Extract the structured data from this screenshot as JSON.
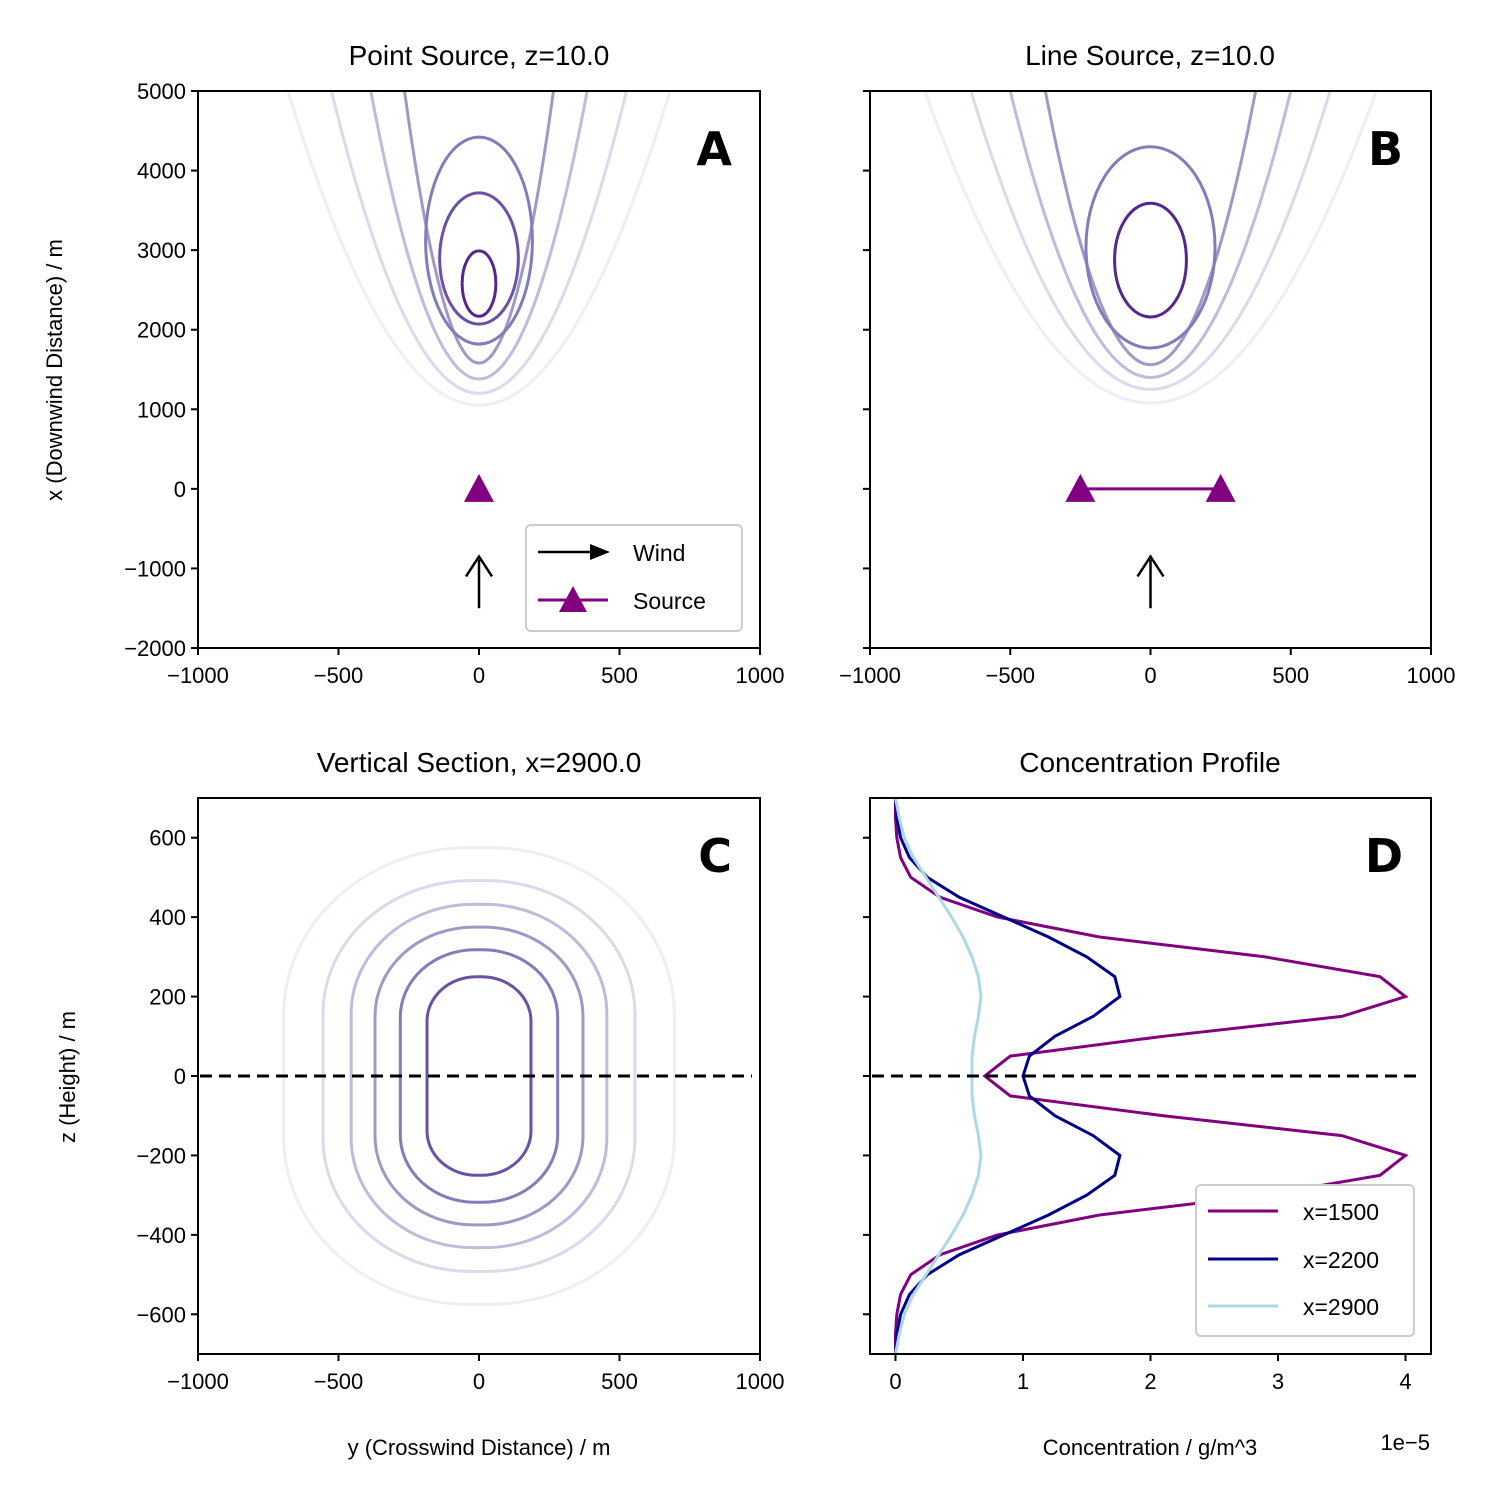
{
  "chart_data": [
    {
      "id": "A",
      "type": "contour",
      "badge": "A",
      "title": "Point Source, z=10.0",
      "xlabel": "",
      "ylabel": "x (Downwind Distance) / m",
      "xlim": [
        -1000,
        1000
      ],
      "ylim": [
        -2000,
        5000
      ],
      "xticks": [
        -1000,
        -500,
        0,
        500,
        1000
      ],
      "yticks": [
        -2000,
        -1000,
        0,
        1000,
        2000,
        3000,
        4000,
        5000
      ],
      "show_ytick_labels": true,
      "contours": [
        {
          "xmin": 1050,
          "x_top": 5000,
          "y_top_halfwidth": 680,
          "color": "#efedf5"
        },
        {
          "xmin": 1200,
          "x_top": 5000,
          "y_top_halfwidth": 525,
          "color": "#dadaeb"
        },
        {
          "xmin": 1380,
          "x_top": 5000,
          "y_top_halfwidth": 385,
          "color": "#bcbddc"
        },
        {
          "xmin": 1580,
          "x_top": 5000,
          "y_top_halfwidth": 265,
          "color": "#9e9ac8"
        },
        {
          "xmin": 1820,
          "x_top": 4420,
          "y_halfwidth": 190,
          "color": "#807dba"
        },
        {
          "xmin": 2070,
          "x_top": 3720,
          "y_halfwidth": 140,
          "color": "#6a51a3"
        },
        {
          "xmin": 2170,
          "x_top": 2990,
          "y_halfwidth": 60,
          "color": "#54278f"
        }
      ],
      "source_points": [
        [
          0,
          0
        ]
      ],
      "source_color": "#800080",
      "wind_arrow": {
        "x": 0,
        "from": -1500,
        "to": -850
      },
      "legend": [
        {
          "label": "Wind",
          "kind": "arrow",
          "color": "#000000"
        },
        {
          "label": "Source",
          "kind": "triangle-line",
          "color": "#800080"
        }
      ]
    },
    {
      "id": "B",
      "type": "contour",
      "badge": "B",
      "title": "Line Source, z=10.0",
      "xlabel": "",
      "ylabel": "",
      "xlim": [
        -1000,
        1000
      ],
      "ylim": [
        -2000,
        5000
      ],
      "xticks": [
        -1000,
        -500,
        0,
        500,
        1000
      ],
      "yticks": [
        -2000,
        -1000,
        0,
        1000,
        2000,
        3000,
        4000,
        5000
      ],
      "show_ytick_labels": false,
      "contours": [
        {
          "xmin": 1080,
          "x_top": 5000,
          "y_top_halfwidth": 805,
          "color": "#efedf5"
        },
        {
          "xmin": 1250,
          "x_top": 5000,
          "y_top_halfwidth": 640,
          "color": "#dadaeb"
        },
        {
          "xmin": 1400,
          "x_top": 5000,
          "y_top_halfwidth": 500,
          "color": "#bcbddc"
        },
        {
          "xmin": 1560,
          "x_top": 5000,
          "y_top_halfwidth": 375,
          "color": "#9e9ac8"
        },
        {
          "xmin": 1770,
          "x_top": 4300,
          "y_halfwidth": 230,
          "color": "#807dba"
        },
        {
          "xmin": 2160,
          "x_top": 3590,
          "y_halfwidth": 128,
          "color": "#54278f"
        }
      ],
      "source_points": [
        [
          -250,
          0
        ],
        [
          250,
          0
        ]
      ],
      "source_color": "#800080",
      "wind_arrow": {
        "x": 0,
        "from": -1500,
        "to": -850
      }
    },
    {
      "id": "C",
      "type": "contour",
      "badge": "C",
      "title": "Vertical Section, x=2900.0",
      "xlabel": "y (Crosswind Distance) / m",
      "ylabel": "z (Height) / m",
      "xlim": [
        -1000,
        1000
      ],
      "ylim": [
        -700,
        700
      ],
      "xticks": [
        -1000,
        -500,
        0,
        500,
        1000
      ],
      "yticks": [
        -600,
        -400,
        -200,
        0,
        200,
        400,
        600
      ],
      "show_ytick_labels": true,
      "contours": [
        {
          "y_halfwidth": 695,
          "z_halfheight": 575,
          "color": "#efedf5"
        },
        {
          "y_halfwidth": 555,
          "z_halfheight": 492,
          "color": "#dadaeb"
        },
        {
          "y_halfwidth": 455,
          "z_halfheight": 432,
          "color": "#bcbddc"
        },
        {
          "y_halfwidth": 370,
          "z_halfheight": 375,
          "color": "#9e9ac8"
        },
        {
          "y_halfwidth": 280,
          "z_halfheight": 318,
          "color": "#807dba"
        },
        {
          "y_halfwidth": 185,
          "z_halfheight": 250,
          "color": "#6a51a3"
        }
      ],
      "ground_line": 0
    },
    {
      "id": "D",
      "type": "line",
      "badge": "D",
      "title": "Concentration Profile",
      "xlabel": "Concentration / g/m^3",
      "ylabel": "",
      "offset_label": "1e−5",
      "xlim": [
        -0.2,
        4.2
      ],
      "ylim": [
        -700,
        700
      ],
      "xticks": [
        0,
        1,
        2,
        3,
        4
      ],
      "yticks": [
        -600,
        -400,
        -200,
        0,
        200,
        400,
        600
      ],
      "show_ytick_labels": false,
      "ground_line": 0,
      "z": [
        -700,
        -650,
        -600,
        -550,
        -500,
        -450,
        -400,
        -350,
        -300,
        -250,
        -200,
        -150,
        -100,
        -50,
        0,
        50,
        100,
        150,
        200,
        250,
        300,
        350,
        400,
        450,
        500,
        550,
        600,
        650,
        700
      ],
      "series": [
        {
          "name": "x=1500",
          "color": "#800080",
          "values": [
            0.0,
            0.0,
            0.01,
            0.04,
            0.12,
            0.35,
            0.8,
            1.6,
            2.9,
            3.8,
            4.0,
            3.5,
            2.1,
            0.9,
            0.7,
            0.9,
            2.1,
            3.5,
            4.0,
            3.8,
            2.9,
            1.6,
            0.8,
            0.35,
            0.12,
            0.04,
            0.01,
            0.0,
            0.0
          ]
        },
        {
          "name": "x=2200",
          "color": "#00008b",
          "values": [
            0.0,
            0.01,
            0.04,
            0.11,
            0.25,
            0.5,
            0.85,
            1.2,
            1.5,
            1.72,
            1.76,
            1.55,
            1.25,
            1.05,
            1.0,
            1.05,
            1.25,
            1.55,
            1.76,
            1.72,
            1.5,
            1.2,
            0.85,
            0.5,
            0.25,
            0.11,
            0.04,
            0.01,
            0.0
          ]
        },
        {
          "name": "x=2900",
          "color": "#add8e6",
          "values": [
            0.0,
            0.03,
            0.07,
            0.14,
            0.24,
            0.34,
            0.44,
            0.53,
            0.6,
            0.65,
            0.67,
            0.65,
            0.62,
            0.6,
            0.6,
            0.6,
            0.62,
            0.65,
            0.67,
            0.65,
            0.6,
            0.53,
            0.44,
            0.34,
            0.24,
            0.14,
            0.07,
            0.03,
            0.0
          ]
        }
      ]
    }
  ]
}
